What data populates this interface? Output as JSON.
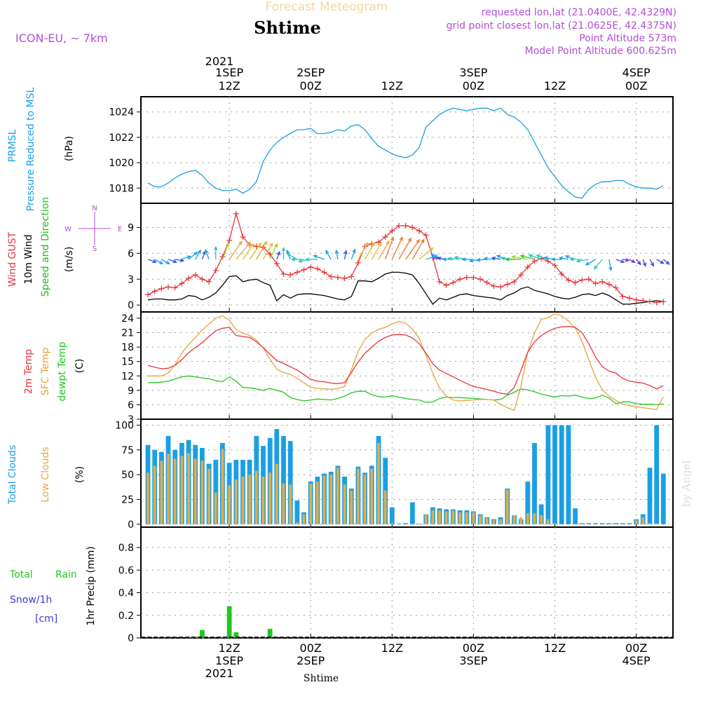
{
  "header": {
    "forecast_title": "Forecast Meteogram",
    "station": "Shtime",
    "model": "ICON-EU, ~ 7km",
    "requested": "requested lon,lat (21.0400E, 42.4329N)",
    "gridpoint": "grid point closest lon,lat (21.0625E, 42.4375N)",
    "point_alt": "Point Altitude 573m",
    "model_alt": "Model Point Altitude 600.625m",
    "credit": "by Angel",
    "footer_station": "Shtime"
  },
  "time_axis": {
    "top_year": "2021",
    "bottom_year": "2021",
    "ticks": [
      {
        "t": 12,
        "hour": "12Z",
        "date": "1SEP"
      },
      {
        "t": 24,
        "hour": "00Z",
        "date": "2SEP"
      },
      {
        "t": 36,
        "hour": "12Z",
        "date": ""
      },
      {
        "t": 48,
        "hour": "00Z",
        "date": "3SEP"
      },
      {
        "t": 60,
        "hour": "12Z",
        "date": ""
      },
      {
        "t": 72,
        "hour": "00Z",
        "date": "4SEP"
      }
    ],
    "t_start": 0,
    "t_end": 77
  },
  "compass": {
    "n": "N",
    "s": "S",
    "w": "W",
    "e": "E"
  },
  "colors": {
    "pressure": "#1a9fe6",
    "gust": "#e8343a",
    "wind": "#000000",
    "dir_label": "#22bb22",
    "temp": "#e8343a",
    "sfc": "#e8a33a",
    "dew": "#22c622",
    "clouds": "#1a9fe6",
    "low": "#e0ae4c",
    "rain": "#22c622",
    "snow": "#3b3bd6",
    "meta": "#b14fd6",
    "title": "#f0d8a0"
  },
  "chart_data": [
    {
      "type": "line",
      "title": "PRMSL Pressure Reduced to MSL",
      "ylabel": "(hPa)",
      "ylim": [
        1016.8,
        1025.2
      ],
      "yticks": [
        1018,
        1020,
        1022,
        1024
      ],
      "labels": {
        "a": "PRMSL",
        "b": "Pressure Reduced to MSL",
        "unit": "(hPa)"
      },
      "series": [
        {
          "name": "PRMSL",
          "x": [
            0,
            1,
            2,
            3,
            4,
            5,
            6,
            7,
            8,
            9,
            10,
            11,
            12,
            13,
            14,
            15,
            16,
            17,
            18,
            19,
            20,
            21,
            22,
            23,
            24,
            25,
            26,
            27,
            28,
            29,
            30,
            31,
            32,
            33,
            34,
            35,
            36,
            37,
            38,
            39,
            40,
            41,
            42,
            43,
            44,
            45,
            46,
            47,
            48,
            49,
            50,
            51,
            52,
            53,
            54,
            55,
            56,
            57,
            58,
            59,
            60,
            61,
            62,
            63,
            64,
            65,
            66,
            67,
            68,
            69,
            70,
            71,
            72,
            73,
            74,
            75,
            76
          ],
          "values": [
            1018.4,
            1018.1,
            1018.1,
            1018.4,
            1018.8,
            1019.1,
            1019.3,
            1019.4,
            1019.0,
            1018.4,
            1018.0,
            1017.8,
            1017.8,
            1017.9,
            1017.6,
            1017.9,
            1018.5,
            1020.1,
            1021.0,
            1021.6,
            1022.0,
            1022.3,
            1022.6,
            1022.6,
            1022.7,
            1022.3,
            1022.3,
            1022.4,
            1022.6,
            1022.5,
            1022.9,
            1023.0,
            1022.6,
            1021.9,
            1021.3,
            1021.0,
            1020.7,
            1020.5,
            1020.4,
            1020.6,
            1021.2,
            1022.8,
            1023.3,
            1023.8,
            1024.1,
            1024.3,
            1024.2,
            1024.1,
            1024.2,
            1024.3,
            1024.3,
            1024.1,
            1024.3,
            1023.8,
            1023.6,
            1023.2,
            1022.6,
            1021.6,
            1020.6,
            1019.6,
            1018.9,
            1018.2,
            1017.7,
            1017.3,
            1017.2,
            1017.9,
            1018.3,
            1018.5,
            1018.5,
            1018.6,
            1018.6,
            1018.3,
            1018.1,
            1018.0,
            1018.0,
            1017.9,
            1018.2
          ]
        }
      ]
    },
    {
      "type": "line",
      "title": "Wind GUST / 10m Wind Speed and Direction",
      "ylabel": "(m/s)",
      "ylim": [
        -0.8,
        11.8
      ],
      "yticks": [
        0,
        3,
        6,
        9
      ],
      "labels": {
        "a": "Wind GUST",
        "b": "10m Wind",
        "c": "Speed and Direction",
        "unit": "(m/s)"
      },
      "series": [
        {
          "name": "Wind GUST",
          "values": [
            1.2,
            1.6,
            1.9,
            2.1,
            2.0,
            2.5,
            3.1,
            3.5,
            3.0,
            2.7,
            4.0,
            5.6,
            7.5,
            10.6,
            7.9,
            7.0,
            6.8,
            6.7,
            5.9,
            4.8,
            3.6,
            3.5,
            3.8,
            4.1,
            4.4,
            4.2,
            3.8,
            3.3,
            3.2,
            3.1,
            3.3,
            4.9,
            6.8,
            7.1,
            7.3,
            7.9,
            8.6,
            9.2,
            9.2,
            9.0,
            8.6,
            8.1,
            5.5,
            2.7,
            2.3,
            2.6,
            3.0,
            3.2,
            3.2,
            3.0,
            2.6,
            2.2,
            2.1,
            2.4,
            2.7,
            3.5,
            4.4,
            5.1,
            5.4,
            5.1,
            4.6,
            3.6,
            2.9,
            2.6,
            2.9,
            3.0,
            2.5,
            2.7,
            2.4,
            2.0,
            1.0,
            0.8,
            0.6,
            0.5,
            0.4,
            0.3,
            0.4
          ]
        },
        {
          "name": "10m Wind",
          "values": [
            0.6,
            0.7,
            0.7,
            0.6,
            0.6,
            0.7,
            1.1,
            1.0,
            0.6,
            0.9,
            1.4,
            2.3,
            3.3,
            3.4,
            2.7,
            2.9,
            3.0,
            2.6,
            2.3,
            0.5,
            1.2,
            0.8,
            1.2,
            1.3,
            1.3,
            1.2,
            1.1,
            0.9,
            0.7,
            0.6,
            1.0,
            2.8,
            2.8,
            2.7,
            3.1,
            3.6,
            3.8,
            3.8,
            3.7,
            3.5,
            2.5,
            1.3,
            0.1,
            0.8,
            0.6,
            0.9,
            1.2,
            1.3,
            1.1,
            1.0,
            0.9,
            0.8,
            0.6,
            1.1,
            1.4,
            1.9,
            2.1,
            1.7,
            1.5,
            1.3,
            1.0,
            0.8,
            0.7,
            0.9,
            1.2,
            1.3,
            1.1,
            1.4,
            1.1,
            0.6,
            0.1,
            0.1,
            0.2,
            0.3,
            0.4,
            0.5,
            0.4
          ]
        },
        {
          "name": "Direction",
          "values": [
            290,
            300,
            300,
            290,
            280,
            250,
            230,
            210,
            200,
            160,
            180,
            200,
            215,
            220,
            215,
            215,
            210,
            210,
            205,
            200,
            180,
            160,
            120,
            90,
            80,
            90,
            110,
            150,
            170,
            190,
            200,
            210,
            210,
            210,
            210,
            200,
            205,
            210,
            215,
            210,
            230,
            250,
            250,
            120,
            100,
            90,
            95,
            100,
            90,
            80,
            85,
            95,
            100,
            110,
            95,
            90,
            100,
            105,
            110,
            110,
            100,
            90,
            100,
            110,
            90,
            80,
            60,
            40,
            350,
            290,
            280,
            300,
            320,
            340,
            330,
            300,
            310
          ]
        }
      ]
    },
    {
      "type": "line",
      "title": "2m Temp / SFC Temp / dewpt Temp",
      "ylabel": "(C)",
      "ylim": [
        3,
        25.3
      ],
      "yticks": [
        3,
        6,
        9,
        12,
        15,
        18,
        21,
        24
      ],
      "labels": {
        "a": "2m Temp",
        "b": "SFC Temp",
        "c": "dewpt Temp",
        "unit": "(C)"
      },
      "series": [
        {
          "name": "2m Temp",
          "values": [
            14.2,
            13.8,
            13.5,
            13.6,
            14.2,
            15.4,
            16.8,
            17.9,
            18.9,
            20.2,
            21.4,
            21.9,
            22.1,
            20.4,
            20.2,
            20.0,
            19.1,
            17.9,
            16.5,
            15.2,
            14.6,
            13.9,
            13.2,
            12.3,
            11.3,
            10.9,
            10.8,
            10.5,
            10.4,
            10.6,
            12.7,
            14.9,
            16.7,
            18.0,
            19.2,
            20.0,
            20.5,
            20.6,
            20.5,
            19.9,
            18.7,
            16.7,
            14.5,
            13.2,
            12.5,
            11.8,
            11.1,
            10.4,
            9.8,
            9.5,
            9.2,
            8.8,
            8.4,
            8.2,
            9.6,
            13.1,
            16.9,
            19.1,
            20.4,
            21.2,
            21.9,
            22.2,
            22.3,
            22.1,
            21.0,
            18.7,
            15.9,
            13.9,
            13.0,
            12.6,
            11.5,
            10.9,
            10.7,
            10.5,
            10.0,
            9.3,
            10.0
          ]
        },
        {
          "name": "SFC Temp",
          "values": [
            12.0,
            12.0,
            12.0,
            12.6,
            14.3,
            16.8,
            18.5,
            20.0,
            21.5,
            22.8,
            24.0,
            24.5,
            23.6,
            21.6,
            20.9,
            20.4,
            19.4,
            17.8,
            15.5,
            13.4,
            12.7,
            12.3,
            11.5,
            10.6,
            9.6,
            9.4,
            9.3,
            9.2,
            9.4,
            9.8,
            13.3,
            17.1,
            19.6,
            20.9,
            21.7,
            22.1,
            22.8,
            23.3,
            23.0,
            21.7,
            19.8,
            16.3,
            12.5,
            9.5,
            7.8,
            7.0,
            6.8,
            6.9,
            7.0,
            7.1,
            7.1,
            7.0,
            6.1,
            5.4,
            4.8,
            9.8,
            16.9,
            20.9,
            23.8,
            24.1,
            24.9,
            24.5,
            23.4,
            22.0,
            19.2,
            15.4,
            11.7,
            9.1,
            7.8,
            6.9,
            6.1,
            5.8,
            5.6,
            5.4,
            5.2,
            5.0,
            7.6
          ]
        },
        {
          "name": "dewpt Temp",
          "values": [
            10.6,
            10.6,
            10.7,
            10.9,
            11.4,
            11.8,
            12.0,
            11.8,
            11.6,
            11.4,
            11.0,
            10.8,
            11.8,
            10.9,
            9.6,
            9.5,
            9.3,
            9.0,
            9.4,
            9.0,
            8.6,
            7.5,
            7.1,
            6.8,
            7.0,
            7.2,
            7.1,
            7.0,
            7.3,
            7.8,
            8.5,
            8.8,
            8.8,
            8.1,
            7.7,
            7.6,
            7.9,
            7.6,
            7.3,
            7.1,
            7.0,
            6.5,
            6.6,
            7.3,
            7.6,
            7.5,
            7.5,
            7.4,
            7.3,
            7.2,
            7.1,
            7.0,
            7.1,
            8.0,
            8.6,
            9.3,
            9.1,
            8.7,
            8.2,
            7.9,
            7.6,
            7.9,
            7.8,
            8.0,
            7.6,
            7.3,
            7.4,
            8.0,
            7.4,
            6.2,
            6.6,
            6.6,
            6.2,
            6.1,
            6.1,
            6.0,
            6.2
          ]
        }
      ]
    },
    {
      "type": "bar",
      "title": "Total Clouds / Low Clouds",
      "ylabel": "(%)",
      "ylim": [
        -3,
        106
      ],
      "yticks": [
        0,
        25,
        50,
        75,
        100
      ],
      "labels": {
        "a": "Total Clouds",
        "b": "Low Clouds",
        "unit": "(%)"
      },
      "series": [
        {
          "name": "Total Clouds",
          "values": [
            80,
            75,
            73,
            89,
            75,
            82,
            85,
            80,
            77,
            61,
            65,
            82,
            62,
            65,
            65,
            65,
            89,
            79,
            87,
            96,
            89,
            84,
            24,
            12,
            43,
            48,
            51,
            53,
            59,
            48,
            36,
            58,
            52,
            59,
            89,
            67,
            17,
            0,
            1,
            22,
            0,
            10,
            17,
            16,
            15,
            15,
            14,
            14,
            13,
            10,
            7,
            5,
            7,
            36,
            9,
            5,
            43,
            82,
            20,
            100,
            100,
            100,
            100,
            16,
            1,
            1,
            1,
            1,
            1,
            1,
            1,
            1,
            5,
            10,
            57,
            100,
            51
          ]
        },
        {
          "name": "Low Clouds",
          "values": [
            52,
            59,
            64,
            71,
            66,
            69,
            72,
            66,
            64,
            56,
            32,
            76,
            39,
            45,
            48,
            50,
            54,
            48,
            52,
            61,
            41,
            40,
            2,
            10,
            41,
            43,
            49,
            50,
            57,
            40,
            34,
            56,
            50,
            56,
            82,
            34,
            1,
            0,
            0,
            0,
            0,
            10,
            14,
            14,
            13,
            14,
            12,
            12,
            12,
            9,
            6,
            4,
            5,
            35,
            9,
            7,
            11,
            11,
            9,
            5,
            1,
            0,
            0,
            0,
            0,
            0,
            0,
            0,
            0,
            0,
            0,
            0,
            4,
            7,
            1,
            1,
            0
          ]
        }
      ]
    },
    {
      "type": "bar",
      "title": "1hr Precip",
      "ylabel": "1hr Precip (mm)",
      "ylim": [
        0,
        0.98
      ],
      "yticks": [
        0,
        0.2,
        0.4,
        0.6,
        0.8
      ],
      "ytick_labels": [
        "0",
        "0.2",
        "0.4",
        "0.6",
        "0.8"
      ],
      "labels": {
        "total": "Total",
        "rain": "Rain",
        "snow": "Snow/1h",
        "cm": "[cm]",
        "unit": "1hr Precip (mm)"
      },
      "series": [
        {
          "name": "Total Rain",
          "values": [
            0,
            0,
            0,
            0,
            0,
            0,
            0.01,
            0.01,
            0.07,
            0,
            0,
            0.01,
            0.28,
            0.05,
            0,
            0,
            0,
            0,
            0.08,
            0,
            0,
            0,
            0,
            0,
            0,
            0,
            0,
            0,
            0,
            0,
            0,
            0,
            0,
            0,
            0,
            0,
            0,
            0,
            0,
            0,
            0,
            0,
            0,
            0,
            0,
            0,
            0,
            0,
            0,
            0,
            0,
            0,
            0,
            0,
            0,
            0,
            0,
            0,
            0,
            0,
            0,
            0,
            0,
            0,
            0,
            0,
            0,
            0,
            0,
            0,
            0,
            0,
            0,
            0,
            0,
            0,
            0
          ]
        }
      ]
    }
  ]
}
